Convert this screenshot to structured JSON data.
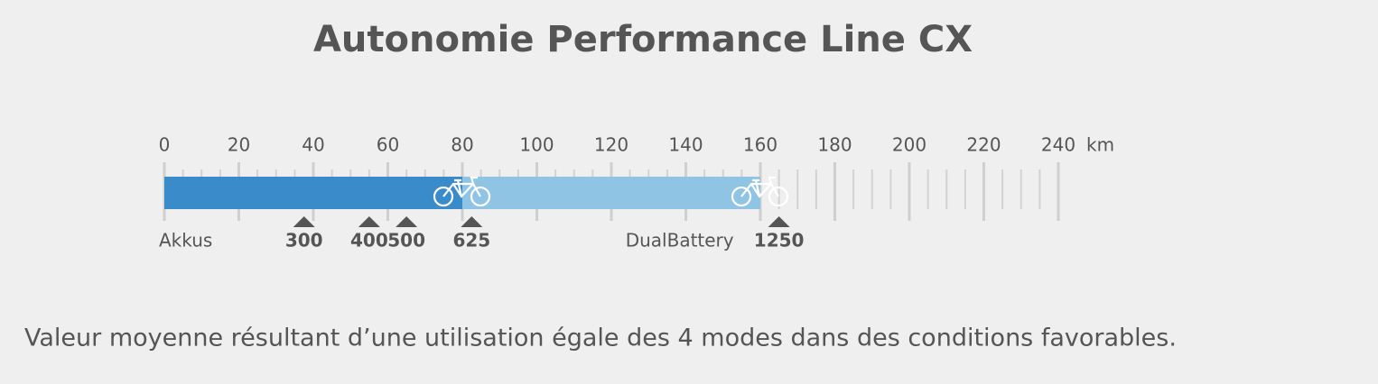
{
  "chart_data": {
    "type": "range-bar",
    "title": "Autonomie Performance Line CX",
    "xlabel": "km",
    "xlim": [
      0,
      240
    ],
    "xticks": [
      0,
      20,
      40,
      60,
      80,
      100,
      120,
      140,
      160,
      180,
      200,
      220,
      240
    ],
    "xminorticks": [
      5,
      10,
      15,
      25,
      30,
      35,
      45,
      50,
      55,
      65,
      70,
      75,
      85,
      90,
      95,
      105,
      110,
      115,
      125,
      130,
      135,
      145,
      150,
      155,
      165,
      170,
      175,
      185,
      190,
      195,
      205,
      210,
      215,
      225,
      230,
      235
    ],
    "series": [
      {
        "name": "Akkus",
        "color": "#3a8bca",
        "values": [
          80
        ]
      },
      {
        "name": "DualBattery",
        "color": "#90c4e5",
        "values": [
          160
        ]
      }
    ],
    "markers": [
      {
        "label": "300",
        "value": 37.5
      },
      {
        "label": "400",
        "value": 55
      },
      {
        "label": "500",
        "value": 65
      },
      {
        "label": "625",
        "value": 82.5
      },
      {
        "label": "1250",
        "value": 165
      }
    ],
    "footnote": "Valeur moyenne résultant d’une utilisation égale des 4 modes dans des conditions favorables."
  }
}
